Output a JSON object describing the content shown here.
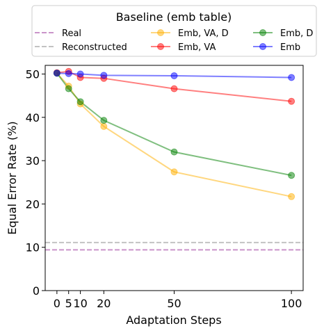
{
  "chart_data": {
    "type": "line",
    "title": "",
    "xlabel": "Adaptation Steps",
    "ylabel": "Equal Error Rate (%)",
    "xlim": [
      -5,
      105
    ],
    "ylim": [
      0,
      52
    ],
    "xticks": [
      0,
      5,
      10,
      20,
      50,
      100
    ],
    "yticks": [
      0,
      10,
      20,
      30,
      40,
      50
    ],
    "grid": false,
    "legend": {
      "title": "Baseline (emb table)",
      "placement": "top, outside plot",
      "columns": 3
    },
    "x": [
      0,
      5,
      10,
      20,
      50,
      100
    ],
    "hlines": [
      {
        "name": "Real",
        "value": 9.4,
        "color": "#a64ca6",
        "style": "dashed"
      },
      {
        "name": "Reconstructed",
        "value": 11.1,
        "color": "#999999",
        "style": "dashed"
      }
    ],
    "series": [
      {
        "name": "Emb, VA, D",
        "color": "#ffb000",
        "values": [
          50.2,
          47.2,
          43.1,
          37.9,
          27.4,
          21.7
        ]
      },
      {
        "name": "Emb, VA",
        "color": "#ff0000",
        "values": [
          50.3,
          50.6,
          49.2,
          49.0,
          46.6,
          43.7
        ]
      },
      {
        "name": "Emb, D",
        "color": "#008000",
        "values": [
          50.2,
          46.6,
          43.6,
          39.3,
          32.0,
          26.6
        ]
      },
      {
        "name": "Emb",
        "color": "#0000ff",
        "values": [
          50.2,
          50.1,
          50.0,
          49.7,
          49.6,
          49.2
        ]
      }
    ]
  }
}
